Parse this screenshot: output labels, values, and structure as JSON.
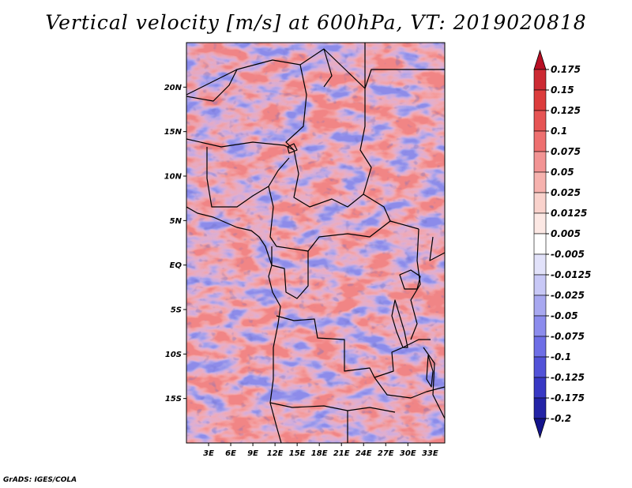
{
  "title": "Vertical velocity [m/s] at 600hPa, VT: 2019020818",
  "credit": "GrADS: IGES/COLA",
  "lat_labels": [
    "20N",
    "15N",
    "10N",
    "5N",
    "EQ",
    "5S",
    "10S",
    "15S"
  ],
  "lat_values": [
    20,
    15,
    10,
    5,
    0,
    -5,
    -10,
    -15
  ],
  "lon_labels": [
    "3E",
    "6E",
    "9E",
    "12E",
    "15E",
    "18E",
    "21E",
    "24E",
    "27E",
    "30E",
    "33E"
  ],
  "lon_values": [
    3,
    6,
    9,
    12,
    15,
    18,
    21,
    24,
    27,
    30,
    33
  ],
  "map_extent": {
    "lon_min": 0,
    "lon_max": 35,
    "lat_min": -20,
    "lat_max": 25
  },
  "colorbar": {
    "labels": [
      "0.175",
      "0.15",
      "0.125",
      "0.1",
      "0.075",
      "0.05",
      "0.025",
      "0.0125",
      "0.005",
      "-0.005",
      "-0.0125",
      "-0.025",
      "-0.05",
      "-0.075",
      "-0.1",
      "-0.125",
      "-0.175",
      "-0.2"
    ],
    "colors": [
      "#b80f24",
      "#cc2a33",
      "#dc3c3c",
      "#e65454",
      "#ee7070",
      "#f29494",
      "#f6b2ae",
      "#f9d2cc",
      "#fce8e4",
      "#ffffff",
      "#e2e2fa",
      "#c8c8f6",
      "#a8a8f0",
      "#8c8ced",
      "#6e6ee6",
      "#5252d8",
      "#3838c4",
      "#2323a6",
      "#14148c"
    ]
  }
}
